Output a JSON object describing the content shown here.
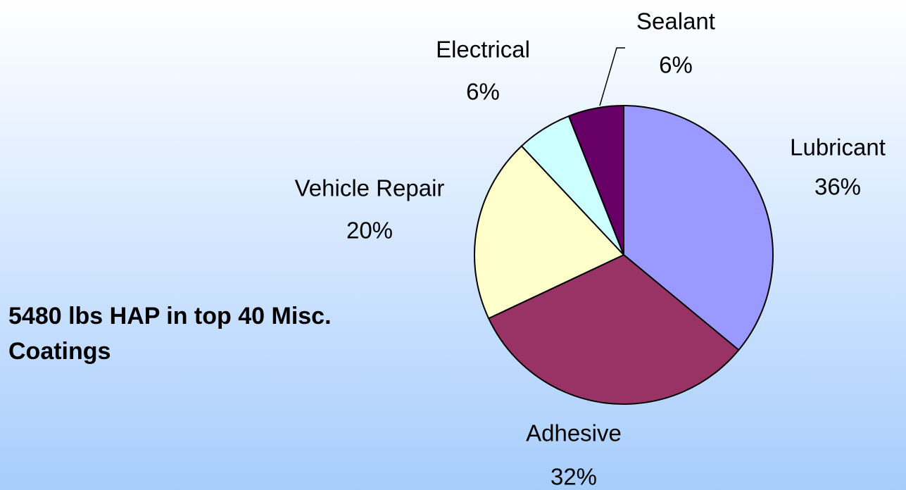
{
  "chart_data": {
    "type": "pie",
    "categories": [
      "Lubricant",
      "Adhesive",
      "Vehicle Repair",
      "Electrical",
      "Sealant"
    ],
    "values": [
      36,
      32,
      20,
      6,
      6
    ],
    "value_labels": [
      "36%",
      "32%",
      "20%",
      "6%",
      "6%"
    ],
    "colors": [
      "#9999ff",
      "#993366",
      "#ffffcc",
      "#ccffff",
      "#660066"
    ],
    "annotation": "5480 lbs HAP in top 40 Misc. Coatings"
  }
}
